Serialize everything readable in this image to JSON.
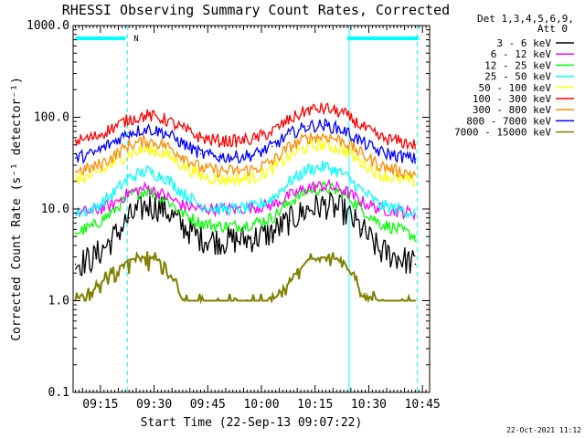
{
  "chart_data": {
    "type": "line",
    "title": "RHESSI Observing Summary Count Rates, Corrected",
    "xlabel": "Start Time (22-Sep-13 09:07:22)",
    "ylabel": "Corrected Count Rate (s⁻¹ detector⁻¹)",
    "y_scale": "log",
    "ylim": [
      0.1,
      1000
    ],
    "xlim": [
      "09:07:22",
      "10:47:00"
    ],
    "x_ticks": [
      "09:15",
      "09:30",
      "09:45",
      "10:00",
      "10:15",
      "10:30",
      "10:45"
    ],
    "y_ticks": [
      "0.1",
      "1.0",
      "10.0",
      "100.0",
      "1000.0"
    ],
    "legend_header": [
      "Det 1,3,4,5,6,9,",
      "Att 0"
    ],
    "legend_position": "right",
    "night_flag": "N",
    "flag_intervals": [
      [
        "09:08",
        "09:22"
      ],
      [
        "10:24",
        "10:44"
      ]
    ],
    "vlines_solid": [
      "09:07:22",
      "10:24:30"
    ],
    "vlines_dashed": [
      "09:22:30",
      "10:43:30"
    ],
    "x": [
      "09:08",
      "09:13",
      "09:18",
      "09:23",
      "09:28",
      "09:33",
      "09:38",
      "09:43",
      "09:48",
      "09:53",
      "09:58",
      "10:03",
      "10:08",
      "10:13",
      "10:18",
      "10:23",
      "10:28",
      "10:33",
      "10:38",
      "10:43"
    ],
    "series": [
      {
        "name": "3 - 6 keV",
        "color": "#000000",
        "values": [
          2.5,
          2.9,
          4.5,
          8,
          11,
          10,
          6.5,
          4.8,
          4.5,
          4.6,
          4.8,
          5.5,
          7.5,
          10,
          11,
          9.5,
          6,
          3.5,
          3,
          2.5
        ]
      },
      {
        "name": "6 - 12 keV",
        "color": "#ff00ff",
        "values": [
          9,
          9.5,
          11,
          15,
          17,
          14,
          11,
          10,
          10,
          10,
          10.5,
          11,
          14,
          17,
          18,
          16,
          12,
          10,
          9.5,
          9
        ]
      },
      {
        "name": "12 - 25 keV",
        "color": "#00ff00",
        "values": [
          5.5,
          6.5,
          9,
          14,
          16,
          13,
          9,
          7,
          6.5,
          6.5,
          7,
          8,
          12,
          16,
          17,
          15,
          10,
          7,
          6,
          5
        ]
      },
      {
        "name": "25 - 50 keV",
        "color": "#00ffff",
        "values": [
          9,
          10,
          14,
          22,
          26,
          22,
          15,
          11,
          10,
          10,
          10.5,
          13,
          20,
          27,
          29,
          24,
          16,
          11,
          10,
          9
        ]
      },
      {
        "name": "50 - 100 keV",
        "color": "#ffff00",
        "values": [
          21,
          23,
          30,
          40,
          45,
          40,
          30,
          23,
          21,
          21,
          22,
          27,
          38,
          48,
          50,
          44,
          32,
          24,
          21,
          20
        ]
      },
      {
        "name": "100 - 300 keV",
        "color": "#ff0000",
        "values": [
          55,
          60,
          75,
          95,
          105,
          95,
          75,
          60,
          55,
          55,
          58,
          70,
          95,
          120,
          125,
          110,
          80,
          60,
          55,
          50
        ]
      },
      {
        "name": "300 - 800 keV",
        "color": "#ff8c00",
        "values": [
          26,
          28,
          36,
          50,
          55,
          50,
          38,
          28,
          26,
          26,
          27,
          33,
          48,
          60,
          62,
          55,
          40,
          30,
          26,
          24
        ]
      },
      {
        "name": "800 - 7000 keV",
        "color": "#0000ff",
        "values": [
          36,
          40,
          52,
          68,
          75,
          68,
          52,
          40,
          37,
          37,
          39,
          48,
          66,
          80,
          82,
          72,
          54,
          42,
          38,
          35
        ]
      },
      {
        "name": "7000 - 15000 keV",
        "color": "#808000",
        "values": [
          1.0,
          1.3,
          2.0,
          2.8,
          3.0,
          2.6,
          1.0,
          1.0,
          1.0,
          1.0,
          1.0,
          1.0,
          1.6,
          2.8,
          3.0,
          2.7,
          1.2,
          1.0,
          1.0,
          1.0
        ]
      }
    ]
  },
  "footer": "22-Oct-2021 11:12"
}
